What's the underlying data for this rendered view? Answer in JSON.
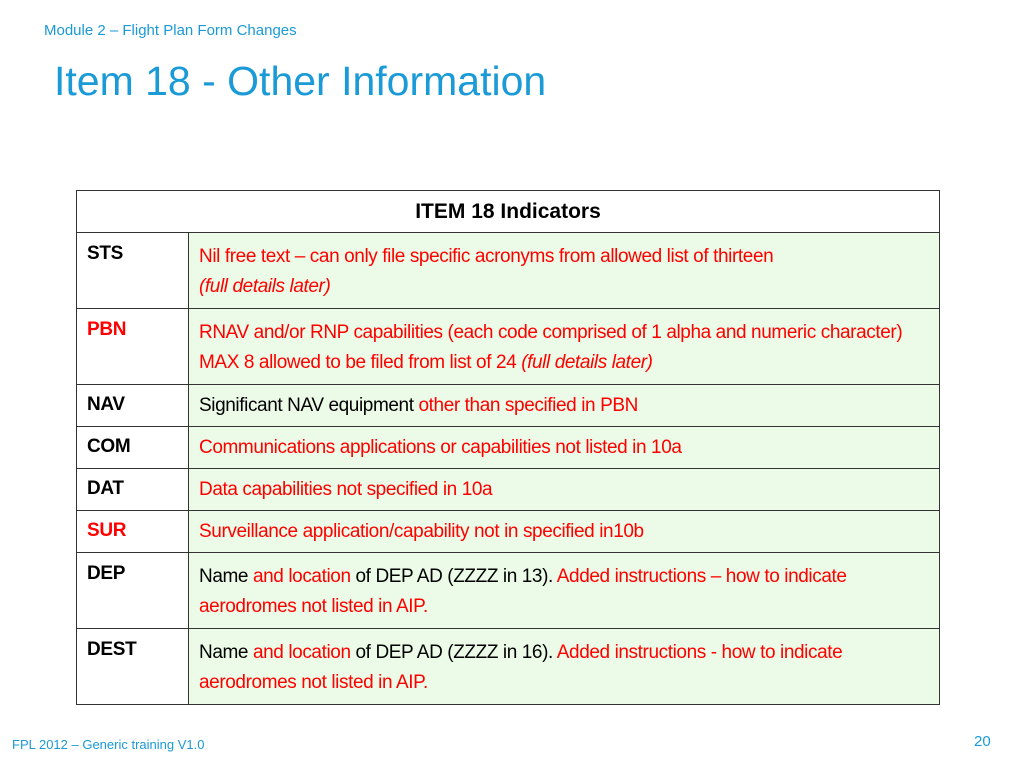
{
  "header": {
    "module": "Module 2 – Flight Plan Form Changes",
    "title": "Item 18 - Other Information"
  },
  "table": {
    "heading": "ITEM 18 Indicators",
    "rows": [
      {
        "code": "STS",
        "code_red": false,
        "desc": [
          {
            "text": "Nil free text – can only file specific acronyms from allowed list of thirteen",
            "red": true,
            "italic": false
          },
          {
            "text": "(full details later)",
            "red": true,
            "italic": true
          }
        ]
      },
      {
        "code": "PBN",
        "code_red": true,
        "desc": [
          {
            "text": "RNAV and/or RNP capabilities (each code comprised of 1 alpha and numeric character) MAX 8 allowed to be filed from list of 24 ",
            "red": true,
            "italic": false
          },
          {
            "text": "(full details later)",
            "red": true,
            "italic": true
          }
        ]
      },
      {
        "code": "NAV",
        "code_red": false,
        "desc": [
          {
            "text": "Significant NAV equipment ",
            "red": false,
            "italic": false
          },
          {
            "text": "other than specified in PBN",
            "red": true,
            "italic": false
          }
        ]
      },
      {
        "code": "COM",
        "code_red": false,
        "desc": [
          {
            "text": "Communications applications or capabilities not listed in 10a",
            "red": true,
            "italic": false
          }
        ]
      },
      {
        "code": "DAT",
        "code_red": false,
        "desc": [
          {
            "text": "Data capabilities not specified in 10a",
            "red": true,
            "italic": false
          }
        ]
      },
      {
        "code": "SUR",
        "code_red": true,
        "desc": [
          {
            "text": "Surveillance application/capability not in specified in10b",
            "red": true,
            "italic": false
          }
        ]
      },
      {
        "code": "DEP",
        "code_red": false,
        "desc": [
          {
            "text": "Name ",
            "red": false,
            "italic": false
          },
          {
            "text": "and location",
            "red": true,
            "italic": false
          },
          {
            "text": " of DEP AD (ZZZZ in 13). ",
            "red": false,
            "italic": false
          },
          {
            "text": "Added instructions – how to indicate aerodromes not listed in AIP.",
            "red": true,
            "italic": false
          }
        ]
      },
      {
        "code": "DEST",
        "code_red": false,
        "desc": [
          {
            "text": "Name ",
            "red": false,
            "italic": false
          },
          {
            "text": "and location",
            "red": true,
            "italic": false
          },
          {
            "text": " of DEP AD (ZZZZ in 16). ",
            "red": false,
            "italic": false
          },
          {
            "text": "Added instructions - how to indicate aerodromes not listed in AIP.",
            "red": true,
            "italic": false
          }
        ]
      }
    ]
  },
  "footer": {
    "left": "FPL 2012 – Generic training V1.0",
    "page_number": "20"
  },
  "colors": {
    "accent": "#1a9ad6",
    "emphasis": "#ff0000",
    "row_background": "#ebfbe7"
  }
}
